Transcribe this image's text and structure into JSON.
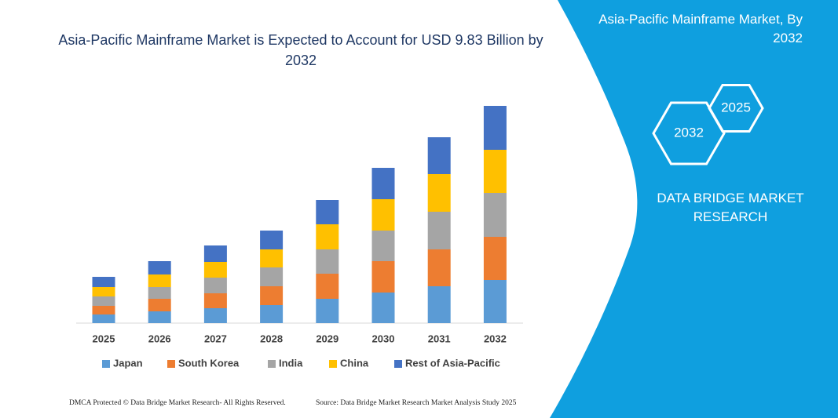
{
  "chart_data": {
    "type": "bar",
    "stacked": true,
    "title": "Asia-Pacific Mainframe Market is Expected to Account for USD 9.83 Billion by 2032",
    "categories": [
      "2025",
      "2026",
      "2027",
      "2028",
      "2029",
      "2030",
      "2031",
      "2032"
    ],
    "series": [
      {
        "name": "Japan",
        "color": "#5b9bd5",
        "values": [
          11,
          15,
          19,
          23,
          31,
          39,
          47,
          55
        ]
      },
      {
        "name": "South Korea",
        "color": "#ed7d31",
        "values": [
          11,
          16,
          19,
          24,
          32,
          40,
          47,
          55
        ]
      },
      {
        "name": "India",
        "color": "#a5a5a5",
        "values": [
          12,
          15,
          20,
          24,
          31,
          39,
          48,
          56
        ]
      },
      {
        "name": "China",
        "color": "#ffc000",
        "values": [
          12,
          16,
          20,
          23,
          32,
          40,
          48,
          55
        ]
      },
      {
        "name": "Rest of Asia-Pacific",
        "color": "#4472c4",
        "values": [
          13,
          17,
          21,
          24,
          31,
          40,
          47,
          56
        ]
      }
    ]
  },
  "side_panel": {
    "title": "Asia-Pacific Mainframe Market, By 2032",
    "hexagons": [
      "2032",
      "2025"
    ],
    "brand": "DATA BRIDGE MARKET RESEARCH"
  },
  "footer": {
    "left": "DMCA Protected © Data Bridge Market Research- All Rights Reserved.",
    "right": "Source: Data Bridge Market Research Market Analysis Study 2025"
  }
}
